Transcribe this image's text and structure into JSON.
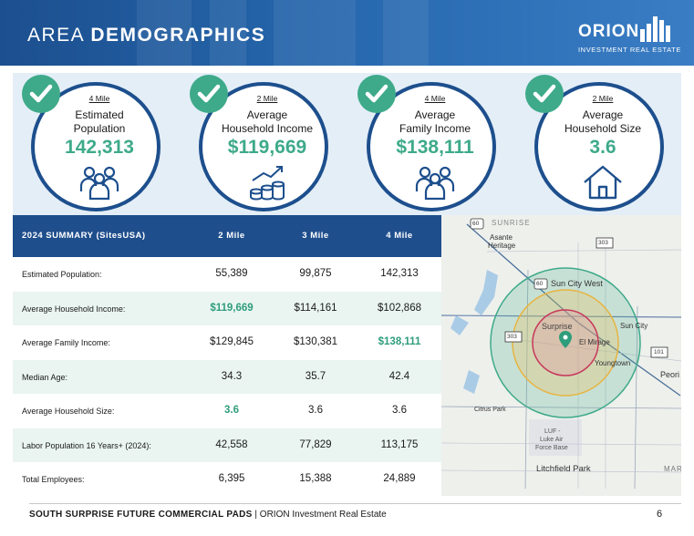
{
  "header": {
    "title_light": "AREA",
    "title_bold": "DEMOGRAPHICS",
    "logo_word": "ORION",
    "logo_sub": "INVESTMENT REAL ESTATE"
  },
  "cards": [
    {
      "mile": "4 Mile",
      "label1": "Estimated",
      "label2": "Population",
      "value": "142,313",
      "icon": "people-icon"
    },
    {
      "mile": "2 Mile",
      "label1": "Average",
      "label2": "Household Income",
      "value": "$119,669",
      "icon": "coins-growth-icon"
    },
    {
      "mile": "4 Mile",
      "label1": "Average",
      "label2": "Family Income",
      "value": "$138,111",
      "icon": "people-icon"
    },
    {
      "mile": "2 Mile",
      "label1": "Average",
      "label2": "Household Size",
      "value": "3.6",
      "icon": "house-icon"
    }
  ],
  "summary": {
    "header": {
      "title": "2024 SUMMARY (SitesUSA)",
      "c1": "2 Mile",
      "c2": "3 Mile",
      "c3": "4 Mile"
    },
    "rows": [
      {
        "label": "Estimated Population:",
        "v1": "55,389",
        "v2": "99,875",
        "v3": "142,313"
      },
      {
        "label": "Average Household Income:",
        "v1": "$119,669",
        "v2": "$114,161",
        "v3": "$102,868"
      },
      {
        "label": "Average Family Income:",
        "v1": "$129,845",
        "v2": "$130,381",
        "v3": "$138,111"
      },
      {
        "label": "Median Age:",
        "v1": "34.3",
        "v2": "35.7",
        "v3": "42.4"
      },
      {
        "label": "Average Household Size:",
        "v1": "3.6",
        "v2": "3.6",
        "v3": "3.6"
      },
      {
        "label": "Labor Population 16 Years+  (2024):",
        "v1": "42,558",
        "v2": "77,829",
        "v3": "113,175"
      },
      {
        "label": "Total Employees:",
        "v1": "6,395",
        "v2": "15,388",
        "v3": "24,889"
      }
    ]
  },
  "map": {
    "labels": {
      "sunrise": "SUNRISE",
      "asante": "Asante",
      "heritage": "Heritage",
      "sun_city_west": "Sun City West",
      "surprise": "Surprise",
      "sun_city": "Sun City",
      "el_mirage": "El Mirage",
      "youngtown": "Youngtown",
      "peoria": "Peori",
      "citrus_park": "Citrus Park",
      "luf1": "LUF -",
      "luf2": "Luke Air",
      "luf3": "Force Base",
      "litchfield": "Litchfield Park",
      "mar": "MAR",
      "shield_60a": "60",
      "shield_60b": "60",
      "shield_303a": "303",
      "shield_303b": "303",
      "shield_101": "101"
    }
  },
  "footer": {
    "bold": "SOUTH SURPRISE  FUTURE COMMERCIAL PADS",
    "rest": " | ORION Investment Real Estate",
    "page": "6"
  }
}
